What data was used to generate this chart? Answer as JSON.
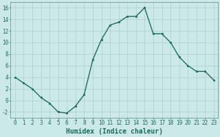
{
  "x": [
    0,
    1,
    2,
    3,
    4,
    5,
    6,
    7,
    8,
    9,
    10,
    11,
    12,
    13,
    14,
    15,
    16,
    17,
    18,
    19,
    20,
    21,
    22,
    23
  ],
  "y": [
    4,
    3,
    2,
    0.5,
    -0.5,
    -2,
    -2.2,
    -1,
    1,
    7,
    10.5,
    13,
    13.5,
    14.5,
    14.5,
    16,
    11.5,
    11.5,
    10,
    7.5,
    6,
    5,
    5,
    3.5
  ],
  "xlabel": "Humidex (Indice chaleur)",
  "line_color": "#1a6b5a",
  "marker": "s",
  "marker_size": 2,
  "bg_color": "#cce8e8",
  "grid_color": "#aacece",
  "xlim": [
    -0.5,
    23.5
  ],
  "ylim": [
    -3,
    17
  ],
  "yticks": [
    -2,
    0,
    2,
    4,
    6,
    8,
    10,
    12,
    14,
    16
  ],
  "xticks": [
    0,
    1,
    2,
    3,
    4,
    5,
    6,
    7,
    8,
    9,
    10,
    11,
    12,
    13,
    14,
    15,
    16,
    17,
    18,
    19,
    20,
    21,
    22,
    23
  ],
  "tick_fontsize": 5.5,
  "xlabel_fontsize": 7.0,
  "linewidth": 1.0
}
